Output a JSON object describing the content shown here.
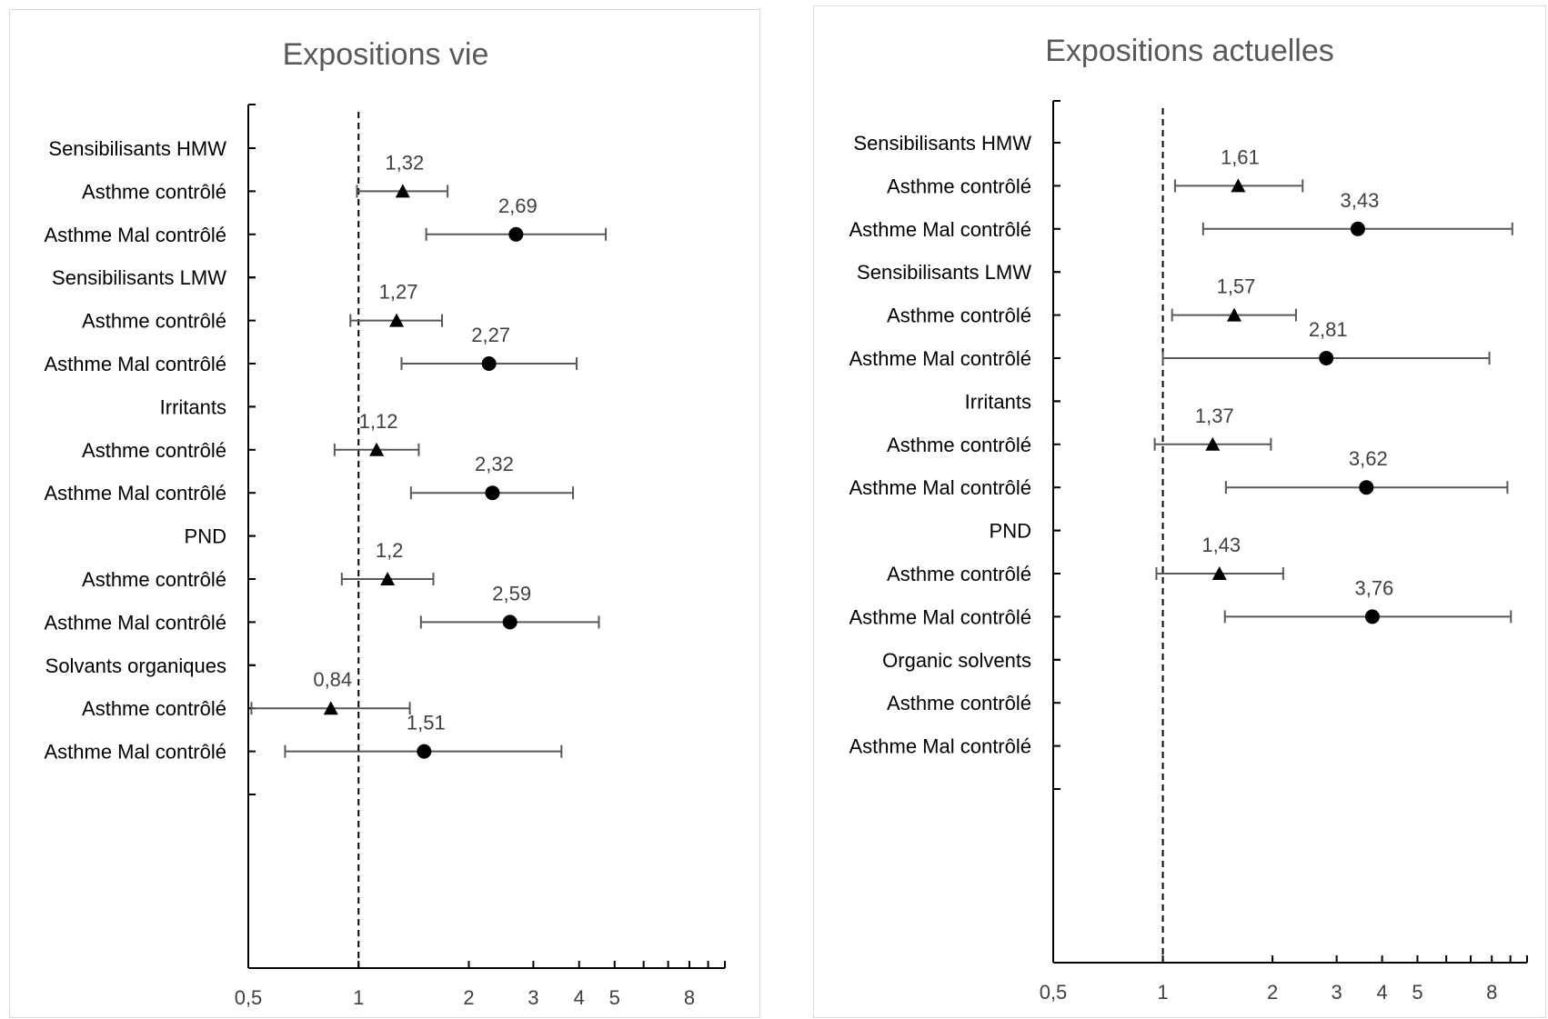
{
  "chart_data": [
    {
      "type": "scatter",
      "subtype": "forest-plot",
      "title": "Expositions vie",
      "x_scale": "log",
      "xlim": [
        0.5,
        10
      ],
      "x_ticks": [
        "0,5",
        "1",
        "2",
        "3",
        "4",
        "5",
        "8"
      ],
      "reference_line": 1,
      "categories": [
        "Sensibilisants HMW",
        "Asthme contrôlé",
        "Asthme Mal contrôlé",
        "Sensibilisants LMW",
        "Asthme contrôlé",
        "Asthme Mal contrôlé",
        "Irritants",
        "Asthme contrôlé",
        "Asthme Mal contrôlé",
        "PND",
        "Asthme contrôlé",
        "Asthme Mal contrôlé",
        "Solvants organiques",
        "Asthme contrôlé",
        "Asthme Mal contrôlé"
      ],
      "points": [
        {
          "row": 1,
          "marker": "triangle",
          "value": 1.32,
          "lower": 0.99,
          "upper": 1.75,
          "label": "1,32"
        },
        {
          "row": 2,
          "marker": "circle",
          "value": 2.69,
          "lower": 1.53,
          "upper": 4.73,
          "label": "2,69"
        },
        {
          "row": 4,
          "marker": "triangle",
          "value": 1.27,
          "lower": 0.95,
          "upper": 1.69,
          "label": "1,27"
        },
        {
          "row": 5,
          "marker": "circle",
          "value": 2.27,
          "lower": 1.31,
          "upper": 3.94,
          "label": "2,27"
        },
        {
          "row": 7,
          "marker": "triangle",
          "value": 1.12,
          "lower": 0.86,
          "upper": 1.46,
          "label": "1,12"
        },
        {
          "row": 8,
          "marker": "circle",
          "value": 2.32,
          "lower": 1.39,
          "upper": 3.85,
          "label": "2,32"
        },
        {
          "row": 10,
          "marker": "triangle",
          "value": 1.2,
          "lower": 0.9,
          "upper": 1.6,
          "label": "1,2"
        },
        {
          "row": 11,
          "marker": "circle",
          "value": 2.59,
          "lower": 1.48,
          "upper": 4.53,
          "label": "2,59"
        },
        {
          "row": 13,
          "marker": "triangle",
          "value": 0.84,
          "lower": 0.51,
          "upper": 1.38,
          "label": "0,84"
        },
        {
          "row": 14,
          "marker": "circle",
          "value": 1.51,
          "lower": 0.63,
          "upper": 3.58,
          "label": "1,51"
        }
      ]
    },
    {
      "type": "scatter",
      "subtype": "forest-plot",
      "title": "Expositions actuelles",
      "x_scale": "log",
      "xlim": [
        0.5,
        10
      ],
      "x_ticks": [
        "0,5",
        "1",
        "2",
        "3",
        "4",
        "5",
        "8"
      ],
      "reference_line": 1,
      "categories": [
        "Sensibilisants HMW",
        "Asthme contrôlé",
        "Asthme Mal contrôlé",
        "Sensibilisants LMW",
        "Asthme contrôlé",
        "Asthme Mal contrôlé",
        "Irritants",
        "Asthme contrôlé",
        "Asthme Mal contrôlé",
        "PND",
        "Asthme contrôlé",
        "Asthme Mal contrôlé",
        "Organic solvents",
        "Asthme contrôlé",
        "Asthme Mal contrôlé"
      ],
      "points": [
        {
          "row": 1,
          "marker": "triangle",
          "value": 1.61,
          "lower": 1.08,
          "upper": 2.42,
          "label": "1,61"
        },
        {
          "row": 2,
          "marker": "circle",
          "value": 3.43,
          "lower": 1.29,
          "upper": 9.11,
          "label": "3,43"
        },
        {
          "row": 4,
          "marker": "triangle",
          "value": 1.57,
          "lower": 1.06,
          "upper": 2.32,
          "label": "1,57"
        },
        {
          "row": 5,
          "marker": "circle",
          "value": 2.81,
          "lower": 1.0,
          "upper": 7.88,
          "label": "2,81"
        },
        {
          "row": 7,
          "marker": "triangle",
          "value": 1.37,
          "lower": 0.95,
          "upper": 1.98,
          "label": "1,37"
        },
        {
          "row": 8,
          "marker": "circle",
          "value": 3.62,
          "lower": 1.49,
          "upper": 8.83,
          "label": "3,62"
        },
        {
          "row": 10,
          "marker": "triangle",
          "value": 1.43,
          "lower": 0.96,
          "upper": 2.14,
          "label": "1,43"
        },
        {
          "row": 11,
          "marker": "circle",
          "value": 3.76,
          "lower": 1.48,
          "upper": 9.03,
          "label": "3,76"
        }
      ]
    }
  ]
}
